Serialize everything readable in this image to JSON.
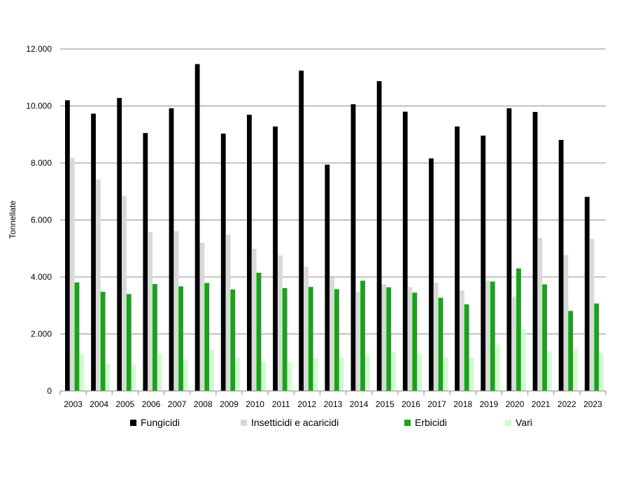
{
  "chart_data": {
    "type": "bar",
    "title": "",
    "xlabel": "",
    "ylabel": "Tonnellate",
    "ylim": [
      0,
      12000
    ],
    "yticks": [
      "0",
      "2.000",
      "4.000",
      "6.000",
      "8.000",
      "10.000",
      "12.000"
    ],
    "grid": true,
    "legend_position": "bottom",
    "categories": [
      "2003",
      "2004",
      "2005",
      "2006",
      "2007",
      "2008",
      "2009",
      "2010",
      "2011",
      "2012",
      "2013",
      "2014",
      "2015",
      "2016",
      "2017",
      "2018",
      "2019",
      "2020",
      "2021",
      "2022",
      "2023"
    ],
    "series": [
      {
        "name": "Fungicidi",
        "color": "#000000",
        "values": [
          10200,
          9730,
          10280,
          9050,
          9920,
          11470,
          9030,
          9690,
          9280,
          11240,
          7940,
          10060,
          10870,
          9800,
          8160,
          9280,
          8960,
          9920,
          9790,
          8810,
          6810
        ]
      },
      {
        "name": "Insetticidi e acaricidi",
        "color": "#d9d9d9",
        "values": [
          8180,
          7420,
          6840,
          5580,
          5610,
          5200,
          5480,
          4990,
          4760,
          4360,
          3990,
          3480,
          3740,
          3640,
          3800,
          3530,
          3870,
          3320,
          5370,
          4770,
          5340
        ]
      },
      {
        "name": "Erbicidi",
        "color": "#19a319",
        "values": [
          3810,
          3480,
          3400,
          3750,
          3670,
          3790,
          3560,
          4150,
          3610,
          3650,
          3570,
          3870,
          3640,
          3450,
          3270,
          3040,
          3840,
          4300,
          3740,
          2810,
          3070
        ]
      },
      {
        "name": "Vari",
        "color": "#ccffcc",
        "values": [
          1270,
          960,
          920,
          1310,
          1100,
          1460,
          1150,
          1020,
          1010,
          1150,
          1160,
          1250,
          1370,
          1300,
          1190,
          1180,
          1620,
          2170,
          1390,
          1470,
          1330
        ]
      }
    ]
  }
}
